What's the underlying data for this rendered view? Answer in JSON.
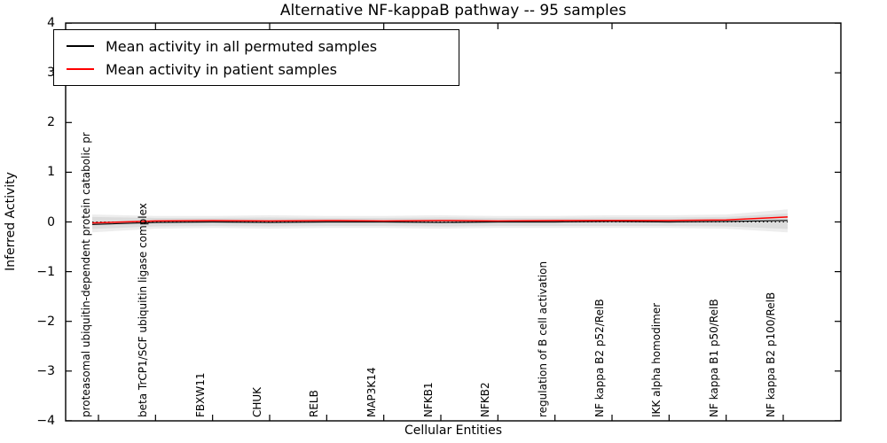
{
  "chart_data": {
    "type": "line",
    "title": "Alternative NF-kappaB pathway -- 95 samples",
    "xlabel": "Cellular Entities",
    "ylabel": "Inferred Activity",
    "ylim": [
      -4,
      4
    ],
    "y_tick_values": [
      4,
      3,
      2,
      1,
      0,
      -1,
      -2,
      -3,
      -4
    ],
    "y_tick_labels": [
      "4",
      "3",
      "2",
      "1",
      "0",
      "−1",
      "−2",
      "−3",
      "−4"
    ],
    "grid": false,
    "legend_position": "upper left",
    "categories": [
      "proteasomal ubiquitin-dependent protein catabolic pr",
      "beta TrCP1/SCF ubiquitin ligase complex",
      "FBXW11",
      "CHUK",
      "RELB",
      "MAP3K14",
      "NFKB1",
      "NFKB2",
      "regulation of B cell activation",
      "NF kappa B2 p52/RelB",
      "IKK alpha homodimer",
      "NF kappa B1 p50/RelB",
      "NF kappa B2 p100/RelB"
    ],
    "series": [
      {
        "name": "Mean activity in all permuted samples",
        "color": "#000000",
        "values": [
          -0.05,
          -0.01,
          0.0,
          -0.01,
          0.0,
          0.0,
          -0.01,
          0.0,
          0.0,
          0.01,
          0.0,
          0.01,
          0.03
        ]
      },
      {
        "name": "Mean activity in patient samples",
        "color": "#ff0000",
        "values": [
          -0.02,
          0.02,
          0.03,
          0.02,
          0.03,
          0.02,
          0.03,
          0.02,
          0.03,
          0.03,
          0.03,
          0.04,
          0.1
        ]
      }
    ],
    "band": {
      "description": "permuted-sample spread around zero",
      "upper": [
        0.1,
        0.08,
        0.08,
        0.09,
        0.08,
        0.08,
        0.09,
        0.08,
        0.08,
        0.09,
        0.09,
        0.1,
        0.17
      ],
      "lower": [
        -0.14,
        -0.09,
        -0.08,
        -0.09,
        -0.08,
        -0.08,
        -0.09,
        -0.08,
        -0.08,
        -0.08,
        -0.08,
        -0.09,
        -0.14
      ],
      "inner_color": "#dcdcdc",
      "outer_color": "#ededed"
    },
    "zero_line": {
      "value": 0,
      "style": "dotted",
      "color": "#000000"
    },
    "axis_color": "#000000",
    "background_color": "#ffffff"
  }
}
